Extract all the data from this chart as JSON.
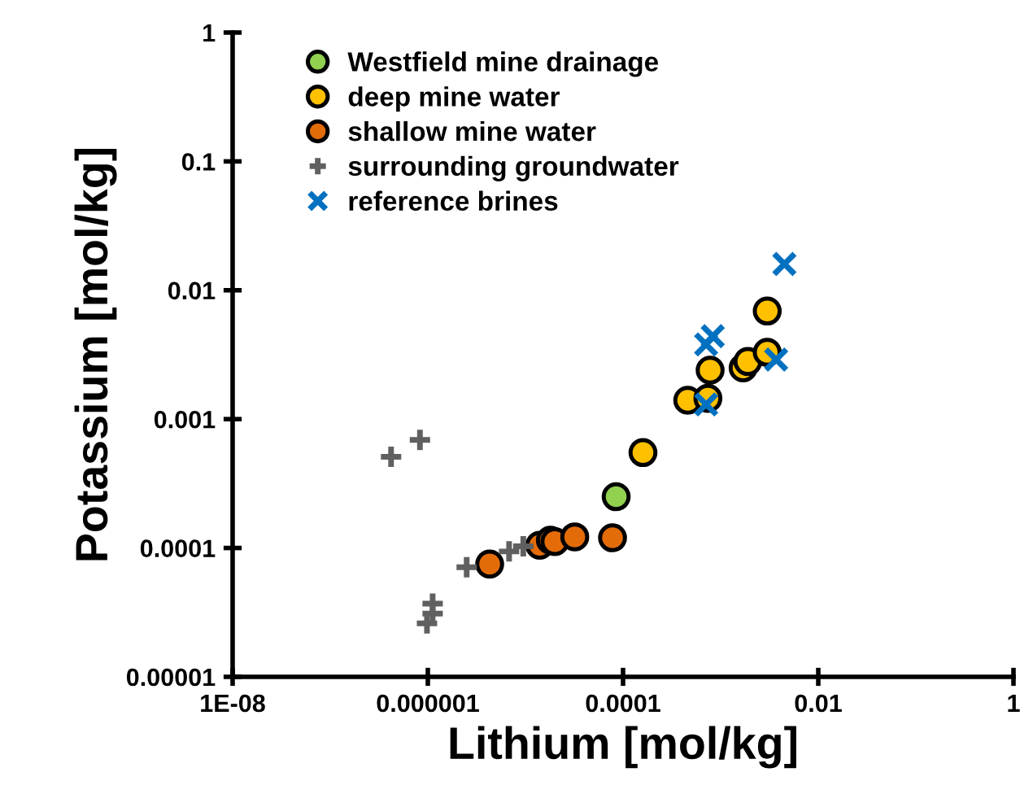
{
  "chart_data": {
    "type": "scatter",
    "xlabel": "Lithium [mol/kg]",
    "ylabel": "Potassium [mol/kg]",
    "log": "xy",
    "grid": false,
    "legend": "top left",
    "xlim": [
      1e-08,
      1
    ],
    "ylim": [
      1e-05,
      1
    ],
    "xticks": [
      {
        "value": 1e-08,
        "label": "1E-08"
      },
      {
        "value": 1e-06,
        "label": "0.000001"
      },
      {
        "value": 0.0001,
        "label": "0.0001"
      },
      {
        "value": 0.01,
        "label": "0.01"
      },
      {
        "value": 1,
        "label": "1"
      }
    ],
    "yticks": [
      {
        "value": 1e-05,
        "label": "0.00001"
      },
      {
        "value": 0.0001,
        "label": "0.0001"
      },
      {
        "value": 0.001,
        "label": "0.001"
      },
      {
        "value": 0.01,
        "label": "0.01"
      },
      {
        "value": 0.1,
        "label": "0.1"
      },
      1
    ],
    "series": [
      {
        "name": "Westfield mine drainage",
        "color": "#92d050",
        "marker": "circle",
        "x": [
          8.5e-05
        ],
        "values": [
          0.00025
        ]
      },
      {
        "name": "deep mine water",
        "color": "#ffc000",
        "marker": "circle",
        "x": [
          0.00016,
          0.003,
          0.00046,
          0.00074,
          0.00078,
          0.0017,
          0.0019,
          0.003
        ],
        "values": [
          0.00055,
          0.0069,
          0.0014,
          0.00145,
          0.0024,
          0.0025,
          0.0028,
          0.0033
        ]
      },
      {
        "name": "shallow mine water",
        "color": "#e36c09",
        "marker": "circle",
        "x": [
          4.3e-06,
          1.4e-05,
          1.8e-05,
          2e-05,
          3.2e-05,
          7.8e-05
        ],
        "values": [
          7.5e-05,
          0.000105,
          0.000115,
          0.000112,
          0.000122,
          0.00012
        ]
      },
      {
        "name": "surrounding groundwater",
        "color": "#606060",
        "marker": "plus",
        "x": [
          4.2e-07,
          8.3e-07,
          2.5e-06,
          6.8e-06,
          9.5e-06,
          1.12e-06,
          1.12e-06,
          9.8e-07
        ],
        "values": [
          0.00051,
          0.00069,
          7.1e-05,
          9.4e-05,
          0.000103,
          3.7e-05,
          3.1e-05,
          2.6e-05
        ]
      },
      {
        "name": "reference brines",
        "color": "#0070c0",
        "marker": "cross",
        "x": [
          0.0045,
          0.00083,
          0.00071,
          0.0037,
          0.00071
        ],
        "values": [
          0.016,
          0.0044,
          0.0038,
          0.0029,
          0.0013
        ]
      }
    ]
  }
}
